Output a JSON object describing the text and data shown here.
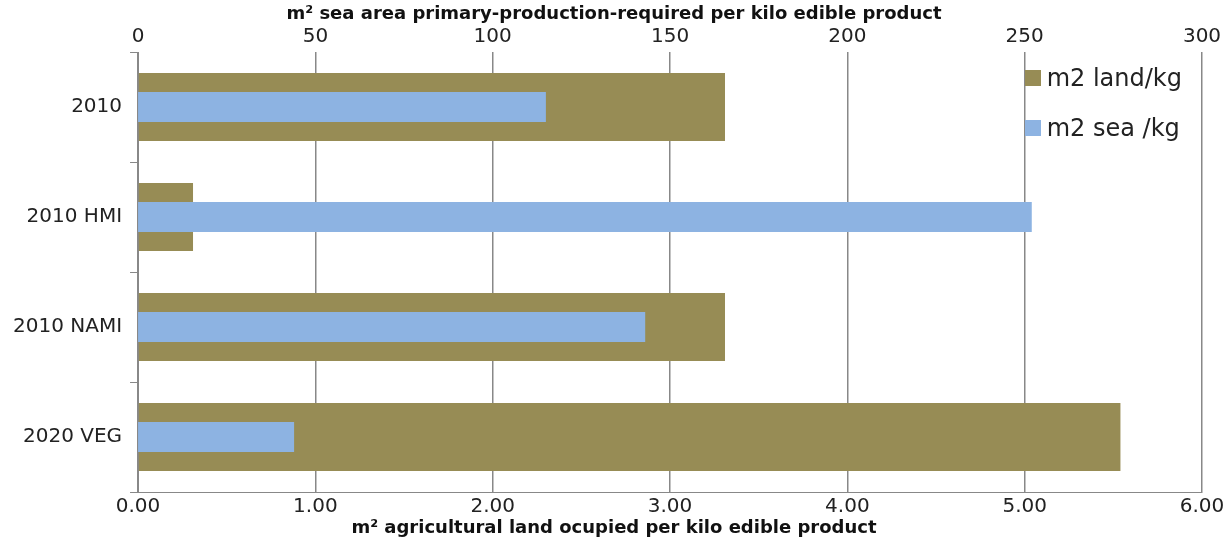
{
  "chart_data": {
    "type": "bar",
    "orientation": "horizontal",
    "categories": [
      "2010",
      "2010 HMI",
      "2010 NAMI",
      "2020 VEG"
    ],
    "series": [
      {
        "name": "m2 land/kg",
        "color": "#978c55",
        "values": [
          3.31,
          0.31,
          3.31,
          5.54
        ]
      },
      {
        "name": "m2 sea /kg",
        "color": "#8db3e2",
        "axis": "x2",
        "values": [
          115,
          252,
          143,
          44
        ]
      }
    ],
    "xlabel": "m² agricultural land ocupied per kilo edible product",
    "x2label": "m² sea area primary-production-required per kilo edible product",
    "xlim": [
      0,
      6
    ],
    "xticks": [
      {
        "value": 0,
        "label": "0.00"
      },
      {
        "value": 1,
        "label": "1.00"
      },
      {
        "value": 2,
        "label": "2.00"
      },
      {
        "value": 3,
        "label": "3.00"
      },
      {
        "value": 4,
        "label": "4.00"
      },
      {
        "value": 5,
        "label": "5.00"
      },
      {
        "value": 6,
        "label": "6.00"
      }
    ],
    "x2lim": [
      0,
      300
    ],
    "x2ticks": [
      0,
      50,
      100,
      150,
      200,
      250,
      300
    ],
    "grid": "x",
    "legend": "top right"
  }
}
